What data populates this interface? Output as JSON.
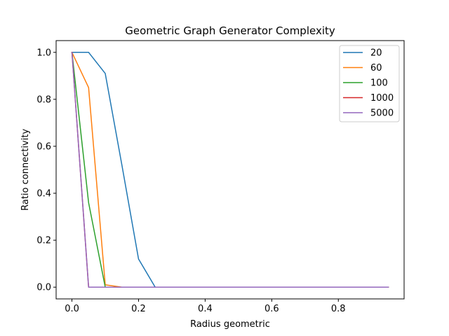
{
  "chart_data": {
    "type": "line",
    "title": "Geometric Graph Generator Complexity",
    "xlabel": "Radius geometric",
    "ylabel": "Ratio connectivity",
    "xlim": [
      -0.0475,
      0.9975
    ],
    "ylim": [
      -0.05,
      1.05
    ],
    "xticks": [
      0.0,
      0.2,
      0.4,
      0.6,
      0.8
    ],
    "xtick_labels": [
      "0.0",
      "0.2",
      "0.4",
      "0.6",
      "0.8"
    ],
    "yticks": [
      0.0,
      0.2,
      0.4,
      0.6,
      0.8,
      1.0
    ],
    "ytick_labels": [
      "0.0",
      "0.2",
      "0.4",
      "0.6",
      "0.8",
      "1.0"
    ],
    "grid": false,
    "legend_position": "top-right",
    "x": [
      0.0,
      0.05,
      0.1,
      0.15,
      0.2,
      0.25,
      0.3,
      0.35,
      0.4,
      0.45,
      0.5,
      0.55,
      0.6,
      0.65,
      0.7,
      0.75,
      0.8,
      0.85,
      0.9,
      0.95
    ],
    "series": [
      {
        "name": "20",
        "color": "#1f77b4",
        "values": [
          1.0,
          1.0,
          0.91,
          0.52,
          0.12,
          0.0,
          0.0,
          0.0,
          0.0,
          0.0,
          0.0,
          0.0,
          0.0,
          0.0,
          0.0,
          0.0,
          0.0,
          0.0,
          0.0,
          0.0
        ]
      },
      {
        "name": "60",
        "color": "#ff7f0e",
        "values": [
          1.0,
          0.85,
          0.01,
          0.0,
          0.0,
          0.0,
          0.0,
          0.0,
          0.0,
          0.0,
          0.0,
          0.0,
          0.0,
          0.0,
          0.0,
          0.0,
          0.0,
          0.0,
          0.0,
          0.0
        ]
      },
      {
        "name": "100",
        "color": "#2ca02c",
        "values": [
          1.0,
          0.36,
          0.0,
          0.0,
          0.0,
          0.0,
          0.0,
          0.0,
          0.0,
          0.0,
          0.0,
          0.0,
          0.0,
          0.0,
          0.0,
          0.0,
          0.0,
          0.0,
          0.0,
          0.0
        ]
      },
      {
        "name": "1000",
        "color": "#d62728",
        "values": [
          1.0,
          0.0,
          0.0,
          0.0,
          0.0,
          0.0,
          0.0,
          0.0,
          0.0,
          0.0,
          0.0,
          0.0,
          0.0,
          0.0,
          0.0,
          0.0,
          0.0,
          0.0,
          0.0,
          0.0
        ]
      },
      {
        "name": "5000",
        "color": "#9467bd",
        "values": [
          1.0,
          0.0,
          0.0,
          0.0,
          0.0,
          0.0,
          0.0,
          0.0,
          0.0,
          0.0,
          0.0,
          0.0,
          0.0,
          0.0,
          0.0,
          0.0,
          0.0,
          0.0,
          0.0,
          0.0
        ]
      }
    ]
  }
}
